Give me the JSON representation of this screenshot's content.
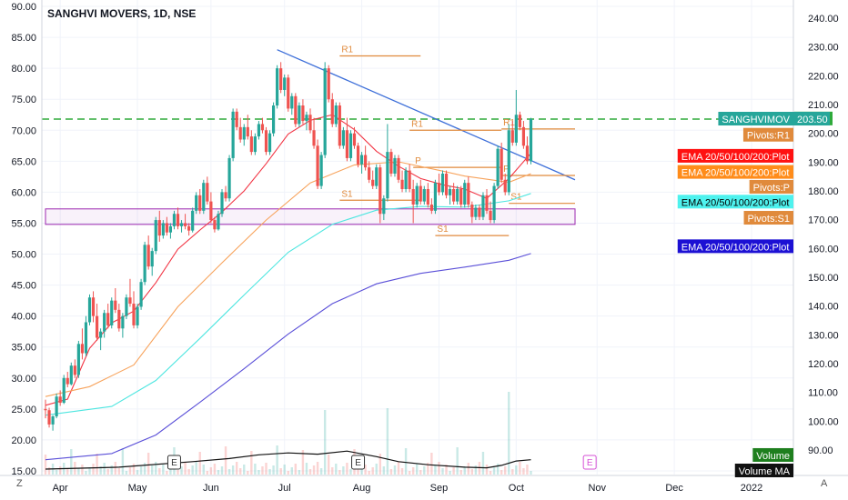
{
  "header": {
    "title": "SANGHVI MOVERS, 1D, NSE"
  },
  "corners": {
    "left": "Z",
    "right": "A"
  },
  "chart_data": {
    "type": "candlestick",
    "left_axis": {
      "min": 15,
      "max": 90,
      "ticks": [
        "90.00",
        "85.00",
        "80.00",
        "75.00",
        "70.00",
        "65.00",
        "60.00",
        "55.00",
        "50.00",
        "45.00",
        "40.00",
        "35.00",
        "30.00",
        "25.00",
        "20.00",
        "15.00"
      ]
    },
    "right_axis": {
      "min": 86,
      "max": 246,
      "ticks": [
        "240.00",
        "230.00",
        "220.00",
        "210.00",
        "200.00",
        "190.00",
        "180.00",
        "170.00",
        "160.00",
        "150.00",
        "140.00",
        "130.00",
        "120.00",
        "110.00",
        "100.00",
        "90.00"
      ],
      "current_price": "205.00"
    },
    "x_labels": [
      "Apr",
      "May",
      "Jun",
      "Jul",
      "Aug",
      "Sep",
      "Oct",
      "Nov",
      "Dec",
      "2022"
    ],
    "last_close": 71.8,
    "dashed_level": 71.8,
    "candles": [
      [
        0,
        25.0,
        26.5,
        23.5,
        24.8
      ],
      [
        1,
        24.8,
        25.2,
        22.0,
        22.5
      ],
      [
        2,
        22.5,
        24.0,
        21.5,
        23.8
      ],
      [
        3,
        23.8,
        27.5,
        23.5,
        27.0
      ],
      [
        4,
        27.0,
        28.0,
        25.5,
        26.0
      ],
      [
        5,
        26.0,
        30.5,
        25.8,
        30.0
      ],
      [
        6,
        30.0,
        31.0,
        28.5,
        29.0
      ],
      [
        7,
        29.0,
        32.5,
        28.8,
        32.0
      ],
      [
        8,
        32.0,
        33.0,
        30.0,
        30.5
      ],
      [
        9,
        30.5,
        36.0,
        30.0,
        35.5
      ],
      [
        10,
        35.5,
        38.0,
        33.0,
        34.0
      ],
      [
        11,
        34.0,
        40.0,
        33.5,
        39.0
      ],
      [
        12,
        39.0,
        43.5,
        38.5,
        43.0
      ],
      [
        13,
        43.0,
        44.0,
        39.0,
        40.0
      ],
      [
        14,
        40.0,
        42.0,
        36.0,
        36.5
      ],
      [
        15,
        36.5,
        38.0,
        34.5,
        37.5
      ],
      [
        16,
        37.5,
        41.0,
        36.5,
        40.5
      ],
      [
        17,
        40.5,
        42.0,
        38.0,
        38.5
      ],
      [
        18,
        38.5,
        43.0,
        38.0,
        42.5
      ],
      [
        19,
        42.5,
        44.5,
        40.5,
        41.0
      ],
      [
        20,
        41.0,
        42.0,
        37.5,
        38.0
      ],
      [
        21,
        38.0,
        40.5,
        36.5,
        40.0
      ],
      [
        22,
        40.0,
        43.5,
        39.5,
        43.0
      ],
      [
        23,
        43.0,
        46.0,
        41.5,
        42.0
      ],
      [
        24,
        42.0,
        44.0,
        38.0,
        38.5
      ],
      [
        25,
        38.5,
        42.0,
        38.0,
        41.5
      ],
      [
        26,
        41.5,
        46.0,
        41.0,
        45.5
      ],
      [
        27,
        45.5,
        52.0,
        45.0,
        51.5
      ],
      [
        28,
        51.5,
        53.0,
        47.5,
        48.0
      ],
      [
        29,
        48.0,
        51.0,
        46.5,
        50.5
      ],
      [
        30,
        50.5,
        56.0,
        50.0,
        55.5
      ],
      [
        31,
        55.5,
        57.0,
        52.0,
        53.0
      ],
      [
        32,
        53.0,
        55.5,
        52.5,
        55.0
      ],
      [
        33,
        55.0,
        56.0,
        53.0,
        53.5
      ],
      [
        34,
        53.5,
        55.0,
        52.5,
        54.5
      ],
      [
        35,
        54.5,
        57.0,
        54.0,
        56.5
      ],
      [
        36,
        56.5,
        57.5,
        54.0,
        54.5
      ],
      [
        37,
        54.5,
        55.5,
        53.5,
        55.0
      ],
      [
        38,
        55.0,
        56.5,
        54.0,
        54.5
      ],
      [
        39,
        54.5,
        55.0,
        53.0,
        53.8
      ],
      [
        40,
        53.8,
        57.5,
        53.5,
        57.0
      ],
      [
        41,
        57.0,
        60.0,
        56.5,
        59.5
      ],
      [
        42,
        59.5,
        60.5,
        56.5,
        57.0
      ],
      [
        43,
        57.0,
        62.0,
        56.5,
        61.5
      ],
      [
        44,
        61.5,
        62.5,
        58.0,
        58.5
      ],
      [
        45,
        58.5,
        60.0,
        55.0,
        55.5
      ],
      [
        46,
        55.5,
        56.0,
        53.5,
        54.0
      ],
      [
        47,
        54.0,
        57.0,
        53.8,
        56.5
      ],
      [
        48,
        56.5,
        60.5,
        56.0,
        60.0
      ],
      [
        49,
        60.0,
        61.0,
        58.5,
        59.0
      ],
      [
        50,
        59.0,
        66.0,
        58.5,
        65.5
      ],
      [
        51,
        65.5,
        73.5,
        65.0,
        73.0
      ],
      [
        52,
        73.0,
        73.5,
        70.0,
        70.5
      ],
      [
        53,
        70.5,
        72.0,
        68.0,
        68.5
      ],
      [
        54,
        68.5,
        71.0,
        67.5,
        70.5
      ],
      [
        55,
        70.5,
        72.5,
        68.5,
        69.0
      ],
      [
        56,
        69.0,
        70.0,
        66.0,
        66.5
      ],
      [
        57,
        66.5,
        69.5,
        66.0,
        69.0
      ],
      [
        58,
        69.0,
        71.5,
        68.5,
        71.0
      ],
      [
        59,
        71.0,
        72.0,
        69.5,
        70.0
      ],
      [
        60,
        70.0,
        70.5,
        66.0,
        66.5
      ],
      [
        61,
        66.5,
        70.0,
        66.0,
        69.5
      ],
      [
        62,
        69.5,
        74.5,
        69.0,
        74.0
      ],
      [
        63,
        74.0,
        80.5,
        73.5,
        80.0
      ],
      [
        64,
        80.0,
        81.0,
        76.0,
        76.5
      ],
      [
        65,
        76.5,
        79.0,
        75.5,
        78.5
      ],
      [
        66,
        78.5,
        79.0,
        73.0,
        73.5
      ],
      [
        67,
        73.5,
        76.0,
        72.5,
        75.5
      ],
      [
        68,
        75.5,
        76.0,
        70.5,
        71.0
      ],
      [
        69,
        71.0,
        74.5,
        70.5,
        74.0
      ],
      [
        70,
        74.0,
        75.0,
        71.0,
        71.5
      ],
      [
        71,
        71.5,
        73.0,
        70.0,
        72.5
      ],
      [
        72,
        72.5,
        73.5,
        69.5,
        70.0
      ],
      [
        73,
        70.0,
        72.0,
        67.0,
        67.5
      ],
      [
        74,
        67.5,
        68.5,
        60.5,
        61.0
      ],
      [
        75,
        61.0,
        66.5,
        60.5,
        66.0
      ],
      [
        76,
        66.0,
        81.0,
        65.5,
        80.0
      ],
      [
        77,
        80.0,
        80.5,
        74.5,
        75.0
      ],
      [
        78,
        75.0,
        76.0,
        70.5,
        71.0
      ],
      [
        79,
        71.0,
        74.5,
        70.5,
        74.0
      ],
      [
        80,
        74.0,
        74.5,
        67.0,
        67.5
      ],
      [
        81,
        67.5,
        70.5,
        67.0,
        70.0
      ],
      [
        82,
        70.0,
        72.0,
        65.0,
        65.5
      ],
      [
        83,
        65.5,
        70.0,
        65.0,
        69.5
      ],
      [
        84,
        69.5,
        70.5,
        67.0,
        67.5
      ],
      [
        85,
        67.5,
        68.0,
        64.0,
        64.5
      ],
      [
        86,
        64.5,
        66.5,
        63.0,
        66.0
      ],
      [
        87,
        66.0,
        67.5,
        63.5,
        64.0
      ],
      [
        88,
        64.0,
        65.0,
        61.5,
        62.0
      ],
      [
        89,
        62.0,
        63.5,
        60.5,
        61.0
      ],
      [
        90,
        61.0,
        64.5,
        60.5,
        64.0
      ],
      [
        91,
        64.0,
        64.5,
        55.0,
        56.5
      ],
      [
        92,
        56.5,
        59.5,
        55.5,
        59.0
      ],
      [
        93,
        59.0,
        71.0,
        58.5,
        66.5
      ],
      [
        94,
        66.5,
        67.0,
        62.5,
        63.0
      ],
      [
        95,
        63.0,
        66.0,
        62.5,
        65.5
      ],
      [
        96,
        65.5,
        66.0,
        61.5,
        62.0
      ],
      [
        97,
        62.0,
        63.5,
        60.0,
        60.5
      ],
      [
        98,
        60.5,
        64.0,
        60.0,
        63.5
      ],
      [
        99,
        63.5,
        64.5,
        60.0,
        60.5
      ],
      [
        100,
        60.5,
        62.0,
        55.0,
        58.0
      ],
      [
        101,
        58.0,
        61.5,
        57.5,
        61.0
      ],
      [
        102,
        61.0,
        62.0,
        58.0,
        58.5
      ],
      [
        103,
        58.5,
        61.0,
        58.0,
        60.5
      ],
      [
        104,
        60.5,
        61.5,
        57.5,
        58.0
      ],
      [
        105,
        58.0,
        59.0,
        56.5,
        57.0
      ],
      [
        106,
        57.0,
        62.0,
        56.5,
        61.5
      ],
      [
        107,
        61.5,
        63.0,
        59.5,
        60.0
      ],
      [
        108,
        60.0,
        63.5,
        59.5,
        63.0
      ],
      [
        109,
        63.0,
        63.5,
        59.0,
        59.5
      ],
      [
        110,
        59.5,
        61.0,
        58.0,
        60.5
      ],
      [
        111,
        60.5,
        61.5,
        58.0,
        58.5
      ],
      [
        112,
        58.5,
        61.0,
        58.0,
        60.5
      ],
      [
        113,
        60.5,
        61.0,
        57.5,
        58.0
      ],
      [
        114,
        58.0,
        62.0,
        57.5,
        61.5
      ],
      [
        115,
        61.5,
        62.5,
        57.5,
        58.0
      ],
      [
        116,
        58.0,
        58.5,
        55.0,
        56.0
      ],
      [
        117,
        56.0,
        58.0,
        55.5,
        57.5
      ],
      [
        118,
        57.5,
        58.0,
        55.5,
        56.0
      ],
      [
        119,
        56.0,
        60.0,
        55.5,
        59.5
      ],
      [
        120,
        59.5,
        60.5,
        56.5,
        57.0
      ],
      [
        121,
        57.0,
        58.5,
        55.0,
        55.5
      ],
      [
        122,
        55.5,
        61.5,
        55.0,
        61.0
      ],
      [
        123,
        61.0,
        67.5,
        60.5,
        67.0
      ],
      [
        124,
        67.0,
        68.0,
        61.5,
        62.0
      ],
      [
        125,
        62.0,
        63.0,
        59.5,
        60.0
      ],
      [
        126,
        60.0,
        71.0,
        59.5,
        70.0
      ],
      [
        127,
        70.0,
        71.5,
        67.5,
        68.0
      ],
      [
        128,
        68.0,
        76.5,
        67.5,
        72.5
      ],
      [
        129,
        72.5,
        73.0,
        70.0,
        70.5
      ],
      [
        130,
        70.5,
        71.5,
        67.0,
        67.5
      ],
      [
        131,
        67.5,
        69.0,
        64.5,
        65.0
      ],
      [
        132,
        65.0,
        72.0,
        64.5,
        71.8
      ]
    ],
    "ema": [
      {
        "name": "EMA 20",
        "color": "#f23645",
        "points": [
          [
            0,
            25.6
          ],
          [
            6,
            26.6
          ],
          [
            12,
            34.8
          ],
          [
            18,
            38.9
          ],
          [
            24,
            40.8
          ],
          [
            30,
            45.4
          ],
          [
            36,
            50.8
          ],
          [
            42,
            53.9
          ],
          [
            48,
            56.8
          ],
          [
            54,
            60.2
          ],
          [
            60,
            64.6
          ],
          [
            66,
            69.4
          ],
          [
            72,
            71.6
          ],
          [
            78,
            72.5
          ],
          [
            84,
            70.1
          ],
          [
            90,
            66.6
          ],
          [
            96,
            64.2
          ],
          [
            102,
            62.2
          ],
          [
            108,
            61.2
          ],
          [
            114,
            60.5
          ],
          [
            120,
            59.0
          ],
          [
            126,
            62.2
          ],
          [
            132,
            66.3
          ]
        ]
      },
      {
        "name": "EMA 50",
        "color": "#f7a35c",
        "points": [
          [
            0,
            27.0
          ],
          [
            12,
            28.6
          ],
          [
            24,
            32.1
          ],
          [
            36,
            41.5
          ],
          [
            48,
            48.6
          ],
          [
            60,
            55.5
          ],
          [
            72,
            61.5
          ],
          [
            84,
            64.4
          ],
          [
            96,
            64.9
          ],
          [
            108,
            63.4
          ],
          [
            114,
            62.6
          ],
          [
            126,
            61.6
          ],
          [
            132,
            63.0
          ]
        ]
      },
      {
        "name": "EMA 100",
        "color": "#4ee6e0",
        "points": [
          [
            0,
            24.0
          ],
          [
            18,
            25.4
          ],
          [
            30,
            29.6
          ],
          [
            42,
            36.4
          ],
          [
            54,
            43.4
          ],
          [
            66,
            50.3
          ],
          [
            78,
            54.8
          ],
          [
            90,
            57.1
          ],
          [
            102,
            57.7
          ],
          [
            114,
            57.6
          ],
          [
            126,
            58.6
          ],
          [
            132,
            59.8
          ]
        ]
      },
      {
        "name": "EMA 200",
        "color": "#5a4fd8",
        "points": [
          [
            0,
            16.8
          ],
          [
            18,
            17.8
          ],
          [
            30,
            20.8
          ],
          [
            42,
            26.1
          ],
          [
            54,
            31.5
          ],
          [
            66,
            37.1
          ],
          [
            78,
            42.0
          ],
          [
            90,
            45.2
          ],
          [
            102,
            46.9
          ],
          [
            114,
            47.9
          ],
          [
            126,
            49.0
          ],
          [
            132,
            50.1
          ]
        ]
      }
    ],
    "trendline": {
      "from": [
        63,
        83.0
      ],
      "to": [
        144,
        62.0
      ]
    },
    "rectangle": {
      "x0": 0,
      "x1": 144,
      "y0": 57.3,
      "y1": 54.8
    },
    "pivots": [
      {
        "label": "R1",
        "x0": 80,
        "x1": 102,
        "y": 82.0
      },
      {
        "label": "R1",
        "x0": 99,
        "x1": 124,
        "y": 70.0
      },
      {
        "label": "P",
        "x0": 100,
        "x1": 124,
        "y": 64.0
      },
      {
        "label": "S1",
        "x0": 80,
        "x1": 102,
        "y": 58.7
      },
      {
        "label": "S1",
        "x0": 106,
        "x1": 126,
        "y": 53.0
      },
      {
        "label": "R1",
        "x0": 124,
        "x1": 144,
        "y": 70.2
      },
      {
        "label": "P",
        "x0": 124,
        "x1": 144,
        "y": 62.7
      },
      {
        "label": "S1",
        "x0": 126,
        "x1": 144,
        "y": 58.2
      }
    ],
    "pivot_color": "#e08a3c",
    "volume_ma": [
      [
        0,
        15.3
      ],
      [
        20,
        15.6
      ],
      [
        40,
        16.5
      ],
      [
        50,
        17.0
      ],
      [
        58,
        17.6
      ],
      [
        66,
        17.9
      ],
      [
        74,
        17.7
      ],
      [
        82,
        18.2
      ],
      [
        90,
        17.3
      ],
      [
        96,
        16.5
      ],
      [
        104,
        16.0
      ],
      [
        114,
        15.6
      ],
      [
        120,
        15.5
      ],
      [
        124,
        15.9
      ],
      [
        128,
        16.6
      ],
      [
        132,
        16.8
      ]
    ],
    "earnings_markers": [
      {
        "x": 35,
        "label": "E"
      },
      {
        "x": 85,
        "label": "E"
      },
      {
        "x": 148,
        "label": "E",
        "color": "#d651d6"
      }
    ],
    "labels_right": [
      {
        "text": "SANGHVIMOV",
        "price": "203.50",
        "value": 71.8,
        "bg": "#26a69a",
        "color": "#ffffff"
      },
      {
        "text": "Pivots:R1",
        "value": 69.2,
        "bg": "#e08a3c",
        "color": "#ffffff"
      },
      {
        "text": "EMA 20/50/100/200:Plot",
        "value": 65.8,
        "bg": "#ff1111",
        "color": "#ffffff"
      },
      {
        "text": "EMA 20/50/100/200:Plot",
        "value": 63.2,
        "bg": "#ff8c1a",
        "color": "#ffffff"
      },
      {
        "text": "Pivots:P",
        "value": 60.8,
        "bg": "#e08a3c",
        "color": "#ffffff"
      },
      {
        "text": "EMA 20/50/100/200:Plot",
        "value": 58.4,
        "bg": "#4ef2ee",
        "color": "#000000"
      },
      {
        "text": "Pivots:S1",
        "value": 55.8,
        "bg": "#e08a3c",
        "color": "#ffffff"
      },
      {
        "text": "EMA 20/50/100/200:Plot",
        "value": 51.2,
        "bg": "#1c10d4",
        "color": "#ffffff"
      },
      {
        "text": "Volume",
        "value": 17.5,
        "bg": "#1e7f1e",
        "color": "#ffffff"
      },
      {
        "text": "Volume MA",
        "value": 15.0,
        "bg": "#111111",
        "color": "#ffffff"
      }
    ]
  }
}
